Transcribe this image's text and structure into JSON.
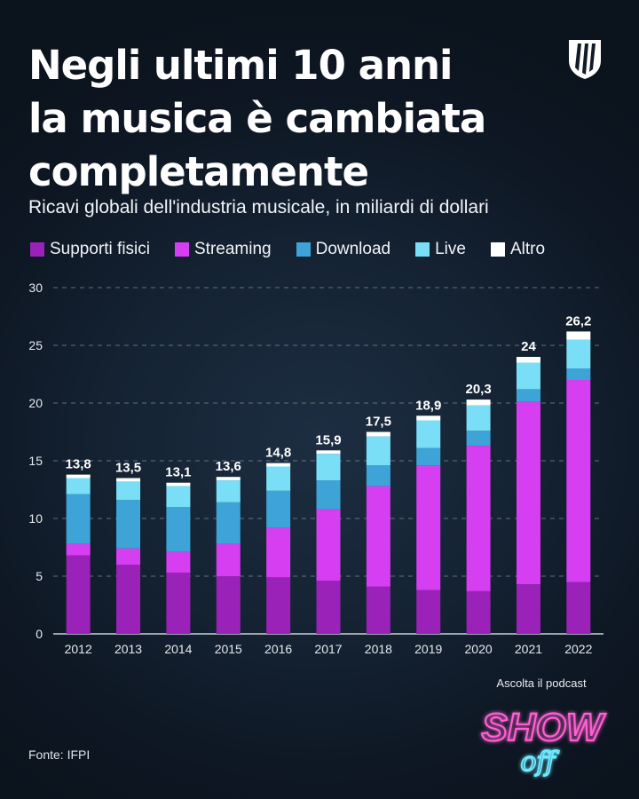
{
  "title_lines": [
    "Negli ultimi 10 anni",
    "la musica è cambiata",
    "completamente"
  ],
  "subtitle": "Ricavi globali dell'industria musicale, in miliardi di dollari",
  "legend": [
    {
      "label": "Supporti fisici",
      "color": "#9b22b8"
    },
    {
      "label": "Streaming",
      "color": "#d63ef2"
    },
    {
      "label": "Download",
      "color": "#3ea3d6"
    },
    {
      "label": "Live",
      "color": "#79def6"
    },
    {
      "label": "Altro",
      "color": "#ffffff"
    }
  ],
  "chart_data": {
    "type": "bar",
    "stacked": true,
    "categories": [
      "2012",
      "2013",
      "2014",
      "2015",
      "2016",
      "2017",
      "2018",
      "2019",
      "2020",
      "2021",
      "2022"
    ],
    "series": [
      {
        "name": "Supporti fisici",
        "color": "#9b22b8",
        "values": [
          6.8,
          6.0,
          5.3,
          5.0,
          4.9,
          4.6,
          4.1,
          3.8,
          3.7,
          4.3,
          4.5
        ]
      },
      {
        "name": "Streaming",
        "color": "#d63ef2",
        "values": [
          1.0,
          1.4,
          1.8,
          2.8,
          4.3,
          6.2,
          8.7,
          10.8,
          12.6,
          15.8,
          17.5
        ]
      },
      {
        "name": "Download",
        "color": "#3ea3d6",
        "values": [
          4.3,
          4.2,
          3.9,
          3.6,
          3.2,
          2.5,
          1.8,
          1.5,
          1.3,
          1.1,
          1.0
        ]
      },
      {
        "name": "Live",
        "color": "#79def6",
        "values": [
          1.4,
          1.6,
          1.8,
          1.9,
          2.1,
          2.3,
          2.5,
          2.4,
          2.2,
          2.3,
          2.5
        ]
      },
      {
        "name": "Altro",
        "color": "#ffffff",
        "values": [
          0.3,
          0.3,
          0.3,
          0.3,
          0.3,
          0.3,
          0.4,
          0.4,
          0.5,
          0.5,
          0.7
        ]
      }
    ],
    "totals": [
      "13,8",
      "13,5",
      "13,1",
      "13,6",
      "14,8",
      "15,9",
      "17,5",
      "18,9",
      "20,3",
      "24",
      "26,2"
    ],
    "yticks": [
      0,
      5,
      10,
      15,
      20,
      25,
      30
    ],
    "ylim": [
      0,
      30
    ],
    "grid": true,
    "legend_position": "top-left"
  },
  "source": "Fonte: IFPI",
  "podcast": {
    "label": "Ascolta il podcast",
    "word_top": "SHOW",
    "word_bottom": "off"
  }
}
